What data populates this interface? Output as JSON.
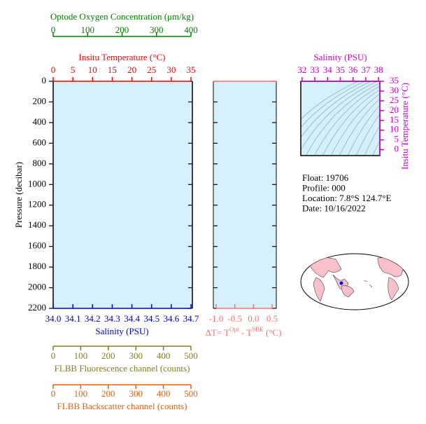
{
  "chart_data": [
    {
      "type": "profile",
      "ylabel": "Pressure (decibar)",
      "ylim": [
        0,
        2200
      ],
      "yticks": [
        0,
        200,
        400,
        600,
        800,
        1000,
        1200,
        1400,
        1600,
        1800,
        2000,
        2200
      ],
      "color": "#d4f0fa",
      "x_axes": [
        {
          "label": "Optode Oxygen Concentration (μm/kg)",
          "color": "#008000",
          "xlim": [
            0,
            400
          ],
          "xticks": [
            0,
            100,
            200,
            300,
            400
          ]
        },
        {
          "label": "Insitu Temperature (°C)",
          "color": "#ff0000",
          "xlim": [
            0,
            35
          ],
          "xticks": [
            0,
            5,
            10,
            15,
            20,
            25,
            30,
            35
          ]
        },
        {
          "label": "Salinity (PSU)",
          "color": "#0000cc",
          "xlim": [
            34,
            34.7
          ],
          "xticks": [
            {
              "value": 34,
              "label": "34.0"
            },
            34.1,
            34.2,
            34.3,
            34.4,
            34.5,
            34.6,
            34.7
          ]
        },
        {
          "label": "FLBB Fluorescence channel (counts)",
          "color": "#808020",
          "xlim": [
            0,
            500
          ],
          "xticks": [
            0,
            100,
            200,
            300,
            400,
            500
          ]
        },
        {
          "label": "FLBB Backscatter channel (counts)",
          "color": "#e06010",
          "xlim": [
            0,
            500
          ],
          "xticks": [
            0,
            100,
            200,
            300,
            400,
            500
          ]
        }
      ]
    },
    {
      "type": "profile",
      "xlabel_parts": [
        "ΔT= T",
        "Opt",
        " - T",
        "SBE",
        " (°C)"
      ],
      "color": "#d4f0fa",
      "axis_color": "#ff7070",
      "xlim": [
        -1,
        0.5
      ],
      "xticks": [
        {
          "value": -1,
          "label": "-1.0"
        },
        -0.5,
        {
          "value": 0,
          "label": "0.0"
        },
        0.5
      ]
    },
    {
      "type": "ts",
      "xlabel": "Salinity (PSU)",
      "ylabel": "Insitu Temperature (°C)",
      "color": "#cc00cc",
      "xlim": [
        31.9,
        38.1
      ],
      "xticks": [
        32,
        33,
        34,
        35,
        36,
        37,
        38
      ],
      "ylim": [
        -3,
        35
      ],
      "yticks": [
        0,
        5,
        10,
        15,
        20,
        25,
        30,
        35
      ]
    }
  ],
  "info": {
    "lines": [
      "Float:  19706",
      "Profile:  000",
      "Location:  7.8°S  124.7°E",
      "Date:  10/16/2022"
    ]
  }
}
